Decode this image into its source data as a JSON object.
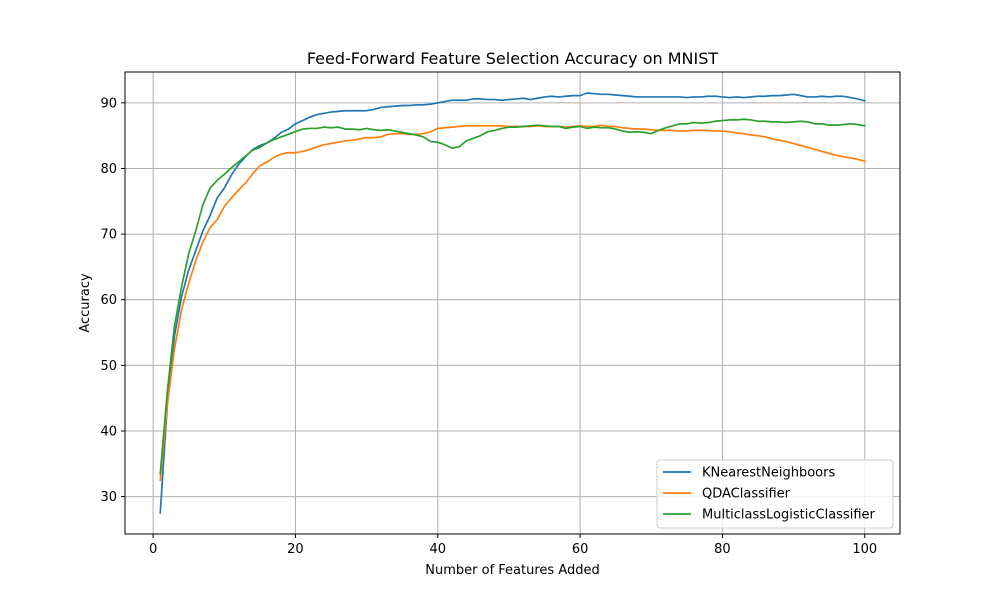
{
  "chart_data": {
    "type": "line",
    "title": "Feed-Forward Feature Selection Accuracy on MNIST",
    "xlabel": "Number of Features Added",
    "ylabel": "Accuracy",
    "xlim": [
      -3.95,
      104.95
    ],
    "ylim": [
      24.3,
      94.7
    ],
    "xticks": [
      0,
      20,
      40,
      60,
      80,
      100
    ],
    "yticks": [
      30,
      40,
      50,
      60,
      70,
      80,
      90
    ],
    "grid": true,
    "legend_position": "lower-right",
    "x_start": 1,
    "x_step": 1,
    "series": [
      {
        "name": "KNearestNeighboors",
        "color": "#1f77b4",
        "values": [
          27.5,
          44.0,
          54.5,
          60.5,
          64.5,
          67.5,
          70.5,
          72.8,
          75.5,
          77.0,
          79.0,
          80.6,
          81.8,
          82.9,
          83.5,
          83.9,
          84.6,
          85.5,
          86.0,
          86.8,
          87.3,
          87.8,
          88.2,
          88.4,
          88.6,
          88.7,
          88.8,
          88.8,
          88.8,
          88.8,
          89.0,
          89.3,
          89.4,
          89.5,
          89.6,
          89.6,
          89.7,
          89.7,
          89.8,
          90.0,
          90.2,
          90.4,
          90.4,
          90.4,
          90.6,
          90.6,
          90.5,
          90.5,
          90.4,
          90.5,
          90.6,
          90.7,
          90.5,
          90.7,
          90.9,
          91.0,
          90.9,
          91.0,
          91.1,
          91.1,
          91.5,
          91.4,
          91.3,
          91.3,
          91.2,
          91.1,
          91.0,
          90.9,
          90.9,
          90.9,
          90.9,
          90.9,
          90.9,
          90.9,
          90.8,
          90.9,
          90.9,
          91.0,
          91.0,
          90.9,
          90.8,
          90.9,
          90.8,
          90.9,
          91.0,
          91.0,
          91.1,
          91.1,
          91.2,
          91.3,
          91.1,
          90.9,
          90.9,
          91.0,
          90.9,
          91.0,
          91.0,
          90.8,
          90.6,
          90.3
        ]
      },
      {
        "name": "QDAClassifier",
        "color": "#ff7f0e",
        "values": [
          32.5,
          44.0,
          52.5,
          58.5,
          62.5,
          66.0,
          68.8,
          71.0,
          72.2,
          74.2,
          75.5,
          76.7,
          77.8,
          79.2,
          80.4,
          81.0,
          81.7,
          82.2,
          82.4,
          82.4,
          82.6,
          82.9,
          83.3,
          83.6,
          83.8,
          84.0,
          84.2,
          84.3,
          84.5,
          84.7,
          84.7,
          84.8,
          85.2,
          85.3,
          85.3,
          85.2,
          85.2,
          85.3,
          85.6,
          86.1,
          86.2,
          86.3,
          86.4,
          86.5,
          86.5,
          86.5,
          86.5,
          86.5,
          86.5,
          86.4,
          86.4,
          86.4,
          86.4,
          86.5,
          86.4,
          86.4,
          86.4,
          86.3,
          86.4,
          86.5,
          86.4,
          86.4,
          86.6,
          86.4,
          86.4,
          86.2,
          86.1,
          86.0,
          86.0,
          85.9,
          85.8,
          85.8,
          85.8,
          85.7,
          85.7,
          85.8,
          85.8,
          85.8,
          85.7,
          85.7,
          85.6,
          85.4,
          85.3,
          85.1,
          85.0,
          84.8,
          84.5,
          84.3,
          84.1,
          83.8,
          83.5,
          83.2,
          82.9,
          82.6,
          82.3,
          82.0,
          81.8,
          81.6,
          81.4,
          81.1
        ]
      },
      {
        "name": "MulticlassLogisticClassifier",
        "color": "#2ca02c",
        "values": [
          33.5,
          46.0,
          56.0,
          62.0,
          67.0,
          70.5,
          74.5,
          77.0,
          78.2,
          79.1,
          80.1,
          81.0,
          81.9,
          82.8,
          83.2,
          83.9,
          84.4,
          84.8,
          85.2,
          85.6,
          86.0,
          86.1,
          86.1,
          86.3,
          86.2,
          86.3,
          86.0,
          86.0,
          85.9,
          86.1,
          85.9,
          85.8,
          85.9,
          85.7,
          85.5,
          85.3,
          85.1,
          84.8,
          84.1,
          84.0,
          83.6,
          83.1,
          83.3,
          84.2,
          84.6,
          85.0,
          85.6,
          85.8,
          86.1,
          86.3,
          86.3,
          86.4,
          86.5,
          86.6,
          86.5,
          86.4,
          86.4,
          86.1,
          86.3,
          86.4,
          86.1,
          86.3,
          86.2,
          86.2,
          86.0,
          85.7,
          85.5,
          85.6,
          85.5,
          85.3,
          85.8,
          86.2,
          86.5,
          86.8,
          86.8,
          87.0,
          86.9,
          87.0,
          87.2,
          87.3,
          87.4,
          87.4,
          87.5,
          87.4,
          87.2,
          87.2,
          87.1,
          87.1,
          87.0,
          87.1,
          87.2,
          87.1,
          86.8,
          86.8,
          86.6,
          86.6,
          86.7,
          86.8,
          86.7,
          86.5
        ]
      }
    ]
  }
}
